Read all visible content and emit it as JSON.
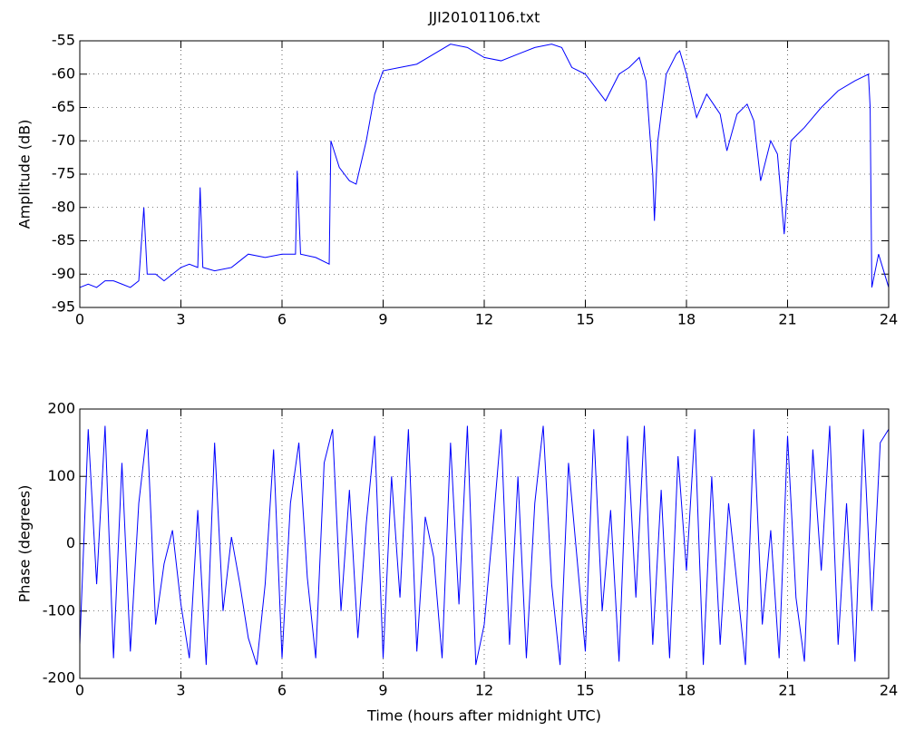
{
  "chart_data": [
    {
      "type": "line",
      "title": "JJI20101106.txt",
      "y_label": "Amplitude (dB)",
      "xlim": [
        0,
        24
      ],
      "xticks": [
        0,
        3,
        6,
        9,
        12,
        15,
        18,
        21,
        24
      ],
      "ylim": [
        -95,
        -55
      ],
      "yticks": [
        -95,
        -90,
        -85,
        -80,
        -75,
        -70,
        -65,
        -60,
        -55
      ],
      "grid": true,
      "series": [
        {
          "color": "#0000ff",
          "x": [
            0,
            0.25,
            0.5,
            0.75,
            1,
            1.25,
            1.5,
            1.75,
            1.9,
            2,
            2.25,
            2.5,
            2.75,
            3,
            3.25,
            3.5,
            3.57,
            3.65,
            4,
            4.5,
            4.75,
            5,
            5.5,
            6,
            6.4,
            6.45,
            6.55,
            7,
            7.4,
            7.45,
            7.7,
            8,
            8.2,
            8.5,
            8.75,
            9,
            9.5,
            10,
            10.5,
            11,
            11.5,
            12,
            12.5,
            13,
            13.5,
            14,
            14.3,
            14.6,
            15,
            15.3,
            15.6,
            16,
            16.3,
            16.6,
            16.8,
            17,
            17.05,
            17.15,
            17.4,
            17.7,
            17.8,
            18,
            18.3,
            18.6,
            19,
            19.2,
            19.5,
            19.8,
            20,
            20.2,
            20.5,
            20.7,
            20.9,
            21.1,
            21.5,
            22,
            22.5,
            23,
            23.4,
            23.45,
            23.5,
            23.7,
            24
          ],
          "values": [
            -92,
            -91.5,
            -92,
            -91,
            -91,
            -91.5,
            -92,
            -91,
            -80,
            -90,
            -90,
            -91,
            -90,
            -89,
            -88.5,
            -89,
            -77,
            -89,
            -89.5,
            -89,
            -88,
            -87,
            -87.5,
            -87,
            -87,
            -74.5,
            -87,
            -87.5,
            -88.5,
            -70,
            -74,
            -76,
            -76.5,
            -70,
            -63,
            -59.5,
            -59,
            -58.5,
            -57,
            -55.5,
            -56,
            -57.5,
            -58,
            -57,
            -56,
            -55.5,
            -56,
            -59,
            -60,
            -62,
            -64,
            -60,
            -59,
            -57.5,
            -61,
            -75,
            -82,
            -70,
            -60,
            -57,
            -56.5,
            -60,
            -66.5,
            -63,
            -66,
            -71.5,
            -66,
            -64.5,
            -67,
            -76,
            -70,
            -72,
            -84,
            -70,
            -68,
            -65,
            -62.5,
            -61,
            -60,
            -65,
            -92,
            -87,
            -92
          ]
        }
      ]
    },
    {
      "type": "line",
      "y_label": "Phase (degrees)",
      "x_label": "Time (hours after midnight UTC)",
      "xlim": [
        0,
        24
      ],
      "xticks": [
        0,
        3,
        6,
        9,
        12,
        15,
        18,
        21,
        24
      ],
      "ylim": [
        -200,
        200
      ],
      "yticks": [
        -200,
        -100,
        0,
        100,
        200
      ],
      "grid": true,
      "series": [
        {
          "color": "#0000ff",
          "x": [
            0,
            0.25,
            0.5,
            0.75,
            1,
            1.25,
            1.5,
            1.75,
            2,
            2.25,
            2.5,
            2.75,
            3,
            3.25,
            3.5,
            3.75,
            4,
            4.25,
            4.5,
            4.75,
            5,
            5.25,
            5.5,
            5.75,
            6,
            6.25,
            6.5,
            6.75,
            7,
            7.25,
            7.5,
            7.75,
            8,
            8.25,
            8.5,
            8.75,
            9,
            9.25,
            9.5,
            9.75,
            10,
            10.25,
            10.5,
            10.75,
            11,
            11.25,
            11.5,
            11.75,
            12,
            12.25,
            12.5,
            12.75,
            13,
            13.25,
            13.5,
            13.75,
            14,
            14.25,
            14.5,
            14.75,
            15,
            15.25,
            15.5,
            15.75,
            16,
            16.25,
            16.5,
            16.75,
            17,
            17.25,
            17.5,
            17.75,
            18,
            18.25,
            18.5,
            18.75,
            19,
            19.25,
            19.5,
            19.75,
            20,
            20.25,
            20.5,
            20.75,
            21,
            21.25,
            21.5,
            21.75,
            22,
            22.25,
            22.5,
            22.75,
            23,
            23.25,
            23.5,
            23.75,
            24
          ],
          "values": [
            -150,
            170,
            -60,
            175,
            -170,
            120,
            -160,
            60,
            170,
            -120,
            -30,
            20,
            -90,
            -170,
            50,
            -180,
            150,
            -100,
            10,
            -60,
            -140,
            -180,
            -60,
            140,
            -170,
            60,
            150,
            -50,
            -170,
            120,
            170,
            -100,
            80,
            -140,
            30,
            160,
            -170,
            100,
            -80,
            170,
            -160,
            40,
            -20,
            -170,
            150,
            -90,
            175,
            -180,
            -120,
            20,
            170,
            -150,
            100,
            -170,
            60,
            175,
            -60,
            -180,
            120,
            -20,
            -160,
            170,
            -100,
            50,
            -175,
            160,
            -80,
            175,
            -150,
            80,
            -170,
            130,
            -40,
            170,
            -180,
            100,
            -150,
            60,
            -60,
            -180,
            170,
            -120,
            20,
            -170,
            160,
            -80,
            -175,
            140,
            -40,
            175,
            -150,
            60,
            -175,
            170,
            -100,
            150,
            170
          ]
        }
      ]
    }
  ]
}
